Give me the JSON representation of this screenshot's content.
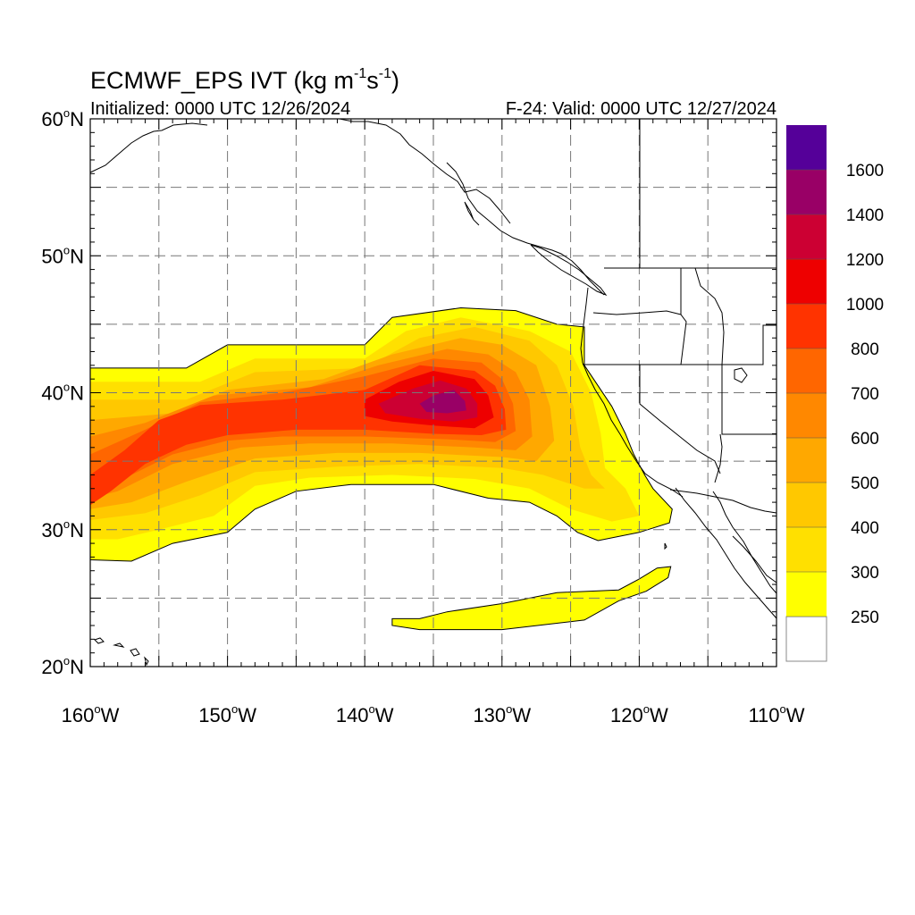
{
  "header": {
    "title_main": "ECMWF_EPS IVT (kg m",
    "title_exp1": "-1",
    "title_mid": "s",
    "title_exp2": "-1",
    "title_end": ")",
    "initialized": "Initialized: 0000 UTC 12/26/2024",
    "valid": "F-24: Valid: 0000 UTC 12/27/2024"
  },
  "map": {
    "lon_range": [
      -160,
      -110
    ],
    "lat_range": [
      20,
      60
    ],
    "grid": "dashed, every 5 degrees",
    "lat_labels": [
      {
        "value": 60,
        "text": "60",
        "suffix": "N"
      },
      {
        "value": 50,
        "text": "50",
        "suffix": "N"
      },
      {
        "value": 40,
        "text": "40",
        "suffix": "N"
      },
      {
        "value": 30,
        "text": "30",
        "suffix": "N"
      },
      {
        "value": 20,
        "text": "20",
        "suffix": "N"
      }
    ],
    "lon_labels": [
      {
        "value": -160,
        "text": "160",
        "suffix": "W"
      },
      {
        "value": -150,
        "text": "150",
        "suffix": "W"
      },
      {
        "value": -140,
        "text": "140",
        "suffix": "W"
      },
      {
        "value": -130,
        "text": "130",
        "suffix": "W"
      },
      {
        "value": -120,
        "text": "120",
        "suffix": "W"
      },
      {
        "value": -110,
        "text": "110",
        "suffix": "W"
      }
    ],
    "ivt_regions": [
      {
        "level": 250,
        "color": "#ffff00",
        "polygon": [
          [
            -160,
            41.8
          ],
          [
            -153,
            41.8
          ],
          [
            -150,
            43.5
          ],
          [
            -148,
            43.5
          ],
          [
            -140,
            43.5
          ],
          [
            -138,
            45.5
          ],
          [
            -133,
            46.2
          ],
          [
            -129,
            46
          ],
          [
            -126,
            45
          ],
          [
            -124,
            44.8
          ],
          [
            -124,
            42
          ],
          [
            -122,
            39
          ],
          [
            -121,
            37
          ],
          [
            -120.4,
            35.5
          ],
          [
            -119.6,
            34
          ],
          [
            -119,
            33
          ],
          [
            -117.6,
            31.5
          ],
          [
            -117.8,
            30.5
          ],
          [
            -120,
            29.8
          ],
          [
            -123,
            29.2
          ],
          [
            -124.5,
            29.8
          ],
          [
            -126,
            31
          ],
          [
            -128,
            32
          ],
          [
            -131,
            32.3
          ],
          [
            -135,
            33.3
          ],
          [
            -141,
            33.3
          ],
          [
            -145,
            32.8
          ],
          [
            -148,
            31.5
          ],
          [
            -150,
            29.8
          ],
          [
            -154,
            29
          ],
          [
            -157,
            27.7
          ],
          [
            -160,
            27.8
          ]
        ]
      },
      {
        "level": 250,
        "color": "#ffff00",
        "polygon": [
          [
            -138,
            23.5
          ],
          [
            -136,
            23.5
          ],
          [
            -134,
            24
          ],
          [
            -130,
            24.6
          ],
          [
            -126,
            25.4
          ],
          [
            -121.5,
            25.6
          ],
          [
            -120,
            26.4
          ],
          [
            -118.7,
            27.2
          ],
          [
            -117.7,
            27.3
          ],
          [
            -117.9,
            26.5
          ],
          [
            -119.5,
            25.5
          ],
          [
            -121.5,
            24.8
          ],
          [
            -124,
            23.4
          ],
          [
            -130,
            22.7
          ],
          [
            -136,
            22.7
          ],
          [
            -138,
            23
          ]
        ]
      },
      {
        "level": 300,
        "color": "#ffe000",
        "polygon": [
          [
            -160,
            40.8
          ],
          [
            -152,
            40.8
          ],
          [
            -148,
            42.5
          ],
          [
            -140,
            42.5
          ],
          [
            -137,
            44.5
          ],
          [
            -133,
            45.5
          ],
          [
            -128,
            44.5
          ],
          [
            -125,
            43
          ],
          [
            -123.5,
            40
          ],
          [
            -122.8,
            37
          ],
          [
            -122.5,
            34.5
          ],
          [
            -121,
            33
          ],
          [
            -120,
            31
          ],
          [
            -122,
            30.6
          ],
          [
            -125,
            31.5
          ],
          [
            -128,
            33
          ],
          [
            -132,
            33.7
          ],
          [
            -138,
            34
          ],
          [
            -144,
            33.8
          ],
          [
            -148,
            33.2
          ],
          [
            -151,
            31
          ],
          [
            -155,
            30
          ],
          [
            -158,
            29.3
          ],
          [
            -160,
            29.3
          ]
        ]
      },
      {
        "level": 400,
        "color": "#ffc800",
        "polygon": [
          [
            -160,
            39.5
          ],
          [
            -153,
            39.5
          ],
          [
            -148,
            41.5
          ],
          [
            -140,
            41.8
          ],
          [
            -136,
            44
          ],
          [
            -132,
            44.8
          ],
          [
            -128,
            43.8
          ],
          [
            -126,
            42
          ],
          [
            -124.8,
            39
          ],
          [
            -124.3,
            36
          ],
          [
            -123.5,
            34
          ],
          [
            -122.5,
            33
          ],
          [
            -124,
            33
          ],
          [
            -127,
            34
          ],
          [
            -130,
            34.5
          ],
          [
            -136,
            34.8
          ],
          [
            -142,
            34.6
          ],
          [
            -148,
            34.2
          ],
          [
            -152,
            32.5
          ],
          [
            -156,
            31.2
          ],
          [
            -160,
            30.7
          ]
        ]
      },
      {
        "level": 500,
        "color": "#ffa800",
        "polygon": [
          [
            -160,
            38
          ],
          [
            -154,
            38.5
          ],
          [
            -150,
            40.2
          ],
          [
            -143,
            41
          ],
          [
            -138,
            42.8
          ],
          [
            -133,
            44
          ],
          [
            -130,
            43.5
          ],
          [
            -127.5,
            42
          ],
          [
            -126.5,
            39
          ],
          [
            -126.2,
            36.5
          ],
          [
            -127.5,
            35
          ],
          [
            -130,
            35.3
          ],
          [
            -136,
            35.6
          ],
          [
            -142,
            35.6
          ],
          [
            -148,
            35.2
          ],
          [
            -153,
            33.5
          ],
          [
            -157,
            32
          ],
          [
            -160,
            31.5
          ]
        ]
      },
      {
        "level": 600,
        "color": "#ff8800",
        "polygon": [
          [
            -160,
            36.8
          ],
          [
            -156,
            37.8
          ],
          [
            -151,
            39.8
          ],
          [
            -144,
            40.4
          ],
          [
            -139,
            42
          ],
          [
            -134,
            43.2
          ],
          [
            -131,
            42.8
          ],
          [
            -129,
            41.5
          ],
          [
            -128,
            39.5
          ],
          [
            -127.8,
            36.8
          ],
          [
            -129,
            35.8
          ],
          [
            -132,
            36
          ],
          [
            -138,
            36.3
          ],
          [
            -144,
            36.3
          ],
          [
            -149,
            36
          ],
          [
            -154,
            34.8
          ],
          [
            -158,
            32.8
          ],
          [
            -160,
            32.3
          ]
        ]
      },
      {
        "level": 700,
        "color": "#ff6600",
        "polygon": [
          [
            -160,
            35.5
          ],
          [
            -156,
            37.3
          ],
          [
            -152,
            39.3
          ],
          [
            -146,
            40
          ],
          [
            -140,
            41.2
          ],
          [
            -135,
            42.5
          ],
          [
            -131.5,
            42.2
          ],
          [
            -130,
            41
          ],
          [
            -129.2,
            39.2
          ],
          [
            -129,
            37.2
          ],
          [
            -130.5,
            36.4
          ],
          [
            -134,
            36.6
          ],
          [
            -140,
            36.8
          ],
          [
            -146,
            36.8
          ],
          [
            -150,
            36.5
          ],
          [
            -154,
            35.5
          ],
          [
            -158,
            33.5
          ],
          [
            -160,
            32.8
          ]
        ]
      },
      {
        "level": 800,
        "color": "#ff3300",
        "polygon": [
          [
            -160,
            34
          ],
          [
            -157.5,
            35.8
          ],
          [
            -155,
            38
          ],
          [
            -152,
            39.1
          ],
          [
            -146,
            39.5
          ],
          [
            -140,
            40.2
          ],
          [
            -136,
            42
          ],
          [
            -132,
            41.6
          ],
          [
            -130.5,
            40.5
          ],
          [
            -129.8,
            38.8
          ],
          [
            -129.7,
            37.3
          ],
          [
            -131.5,
            36.9
          ],
          [
            -135,
            37
          ],
          [
            -140,
            37.3
          ],
          [
            -145,
            37.3
          ],
          [
            -150,
            36.9
          ],
          [
            -153,
            36.2
          ],
          [
            -156,
            34.8
          ],
          [
            -158.5,
            32.8
          ],
          [
            -160,
            31.8
          ]
        ]
      },
      {
        "level": 1000,
        "color": "#ee0000",
        "polygon": [
          [
            -140,
            39.5
          ],
          [
            -137.5,
            40.8
          ],
          [
            -135,
            41.6
          ],
          [
            -132,
            41
          ],
          [
            -131,
            39.8
          ],
          [
            -130.6,
            38.2
          ],
          [
            -132,
            37.4
          ],
          [
            -135,
            37.6
          ],
          [
            -138,
            37.9
          ],
          [
            -140,
            38.3
          ]
        ]
      },
      {
        "level": 1200,
        "color": "#cc0033",
        "polygon": [
          [
            -139,
            39.2
          ],
          [
            -136.5,
            40.3
          ],
          [
            -134.5,
            40.9
          ],
          [
            -132.6,
            40.3
          ],
          [
            -131.8,
            39.2
          ],
          [
            -131.8,
            38.2
          ],
          [
            -133.5,
            37.9
          ],
          [
            -136,
            38.1
          ],
          [
            -138.5,
            38.5
          ]
        ]
      },
      {
        "level": 1400,
        "color": "#990066",
        "polygon": [
          [
            -136,
            39.2
          ],
          [
            -135,
            39.8
          ],
          [
            -133.5,
            40.2
          ],
          [
            -132.7,
            39.4
          ],
          [
            -132.6,
            38.7
          ],
          [
            -134,
            38.5
          ],
          [
            -135.5,
            38.6
          ]
        ]
      }
    ]
  },
  "colorbar": {
    "levels": [
      {
        "label": "",
        "color": "#ffffff"
      },
      {
        "label": "250",
        "color": "#ffff00"
      },
      {
        "label": "300",
        "color": "#ffe000"
      },
      {
        "label": "400",
        "color": "#ffc800"
      },
      {
        "label": "500",
        "color": "#ffa800"
      },
      {
        "label": "600",
        "color": "#ff8800"
      },
      {
        "label": "700",
        "color": "#ff6600"
      },
      {
        "label": "800",
        "color": "#ff3300"
      },
      {
        "label": "1000",
        "color": "#ee0000"
      },
      {
        "label": "1200",
        "color": "#cc0033"
      },
      {
        "label": "1400",
        "color": "#990066"
      },
      {
        "label": "1600",
        "color": "#550099"
      }
    ]
  }
}
